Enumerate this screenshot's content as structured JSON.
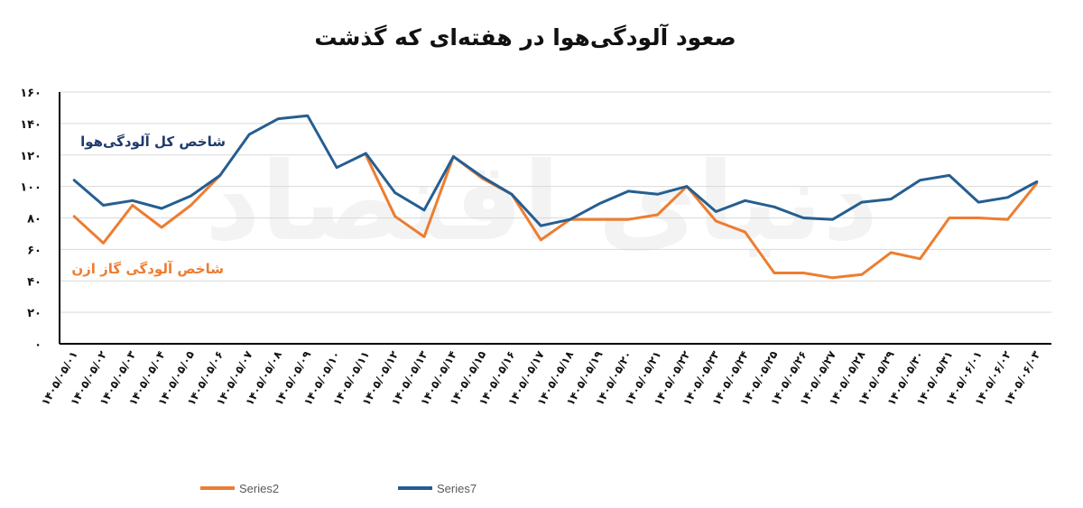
{
  "chart_data": {
    "type": "line",
    "title": "صعود آلودگی‌هوا در هفته‌ای که گذشت",
    "watermark": "دنیای اقتصاد",
    "categories": [
      "۱۴۰۵/۰۵/۰۱",
      "۱۴۰۵/۰۵/۰۲",
      "۱۴۰۵/۰۵/۰۳",
      "۱۴۰۵/۰۵/۰۴",
      "۱۴۰۵/۰۵/۰۵",
      "۱۴۰۵/۰۵/۰۶",
      "۱۴۰۵/۰۵/۰۷",
      "۱۴۰۵/۰۵/۰۸",
      "۱۴۰۵/۰۵/۰۹",
      "۱۴۰۵/۰۵/۱۰",
      "۱۴۰۵/۰۵/۱۱",
      "۱۴۰۵/۰۵/۱۲",
      "۱۴۰۵/۰۵/۱۳",
      "۱۴۰۵/۰۵/۱۴",
      "۱۴۰۵/۰۵/۱۵",
      "۱۴۰۵/۰۵/۱۶",
      "۱۴۰۵/۰۵/۱۷",
      "۱۴۰۵/۰۵/۱۸",
      "۱۴۰۵/۰۵/۱۹",
      "۱۴۰۵/۰۵/۲۰",
      "۱۴۰۵/۰۵/۲۱",
      "۱۴۰۵/۰۵/۲۲",
      "۱۴۰۵/۰۵/۲۳",
      "۱۴۰۵/۰۵/۲۴",
      "۱۴۰۵/۰۵/۲۵",
      "۱۴۰۵/۰۵/۲۶",
      "۱۴۰۵/۰۵/۲۷",
      "۱۴۰۵/۰۵/۲۸",
      "۱۴۰۵/۰۵/۲۹",
      "۱۴۰۵/۰۵/۳۰",
      "۱۴۰۵/۰۵/۳۱",
      "۱۴۰۵/۰۶/۰۱",
      "۱۴۰۵/۰۶/۰۲",
      "۱۴۰۵/۰۶/۰۳"
    ],
    "series": [
      {
        "name": "Series2",
        "annotation": "شاخص آلودگی گاز ازن",
        "color": "#ED7D31",
        "values": [
          81,
          64,
          88,
          74,
          88,
          107,
          null,
          null,
          null,
          null,
          120,
          81,
          68,
          119,
          105,
          95,
          66,
          79,
          79,
          79,
          82,
          100,
          78,
          71,
          45,
          45,
          42,
          44,
          58,
          54,
          80,
          80,
          79,
          102
        ]
      },
      {
        "name": "Series7",
        "annotation": "شاخص کل آلودگی‌هوا",
        "color": "#255E91",
        "values": [
          104,
          88,
          91,
          86,
          94,
          107,
          133,
          143,
          145,
          112,
          121,
          96,
          85,
          119,
          106,
          95,
          75,
          79,
          89,
          97,
          95,
          100,
          84,
          91,
          87,
          80,
          79,
          90,
          92,
          104,
          107,
          90,
          93,
          103
        ]
      }
    ],
    "y_ticks": [
      "۰",
      "۲۰",
      "۴۰",
      "۶۰",
      "۸۰",
      "۱۰۰",
      "۱۲۰",
      "۱۴۰",
      "۱۶۰"
    ],
    "ylim": [
      0,
      160
    ],
    "grid": true,
    "legend_position": "bottom",
    "xlabel": "",
    "ylabel": ""
  }
}
